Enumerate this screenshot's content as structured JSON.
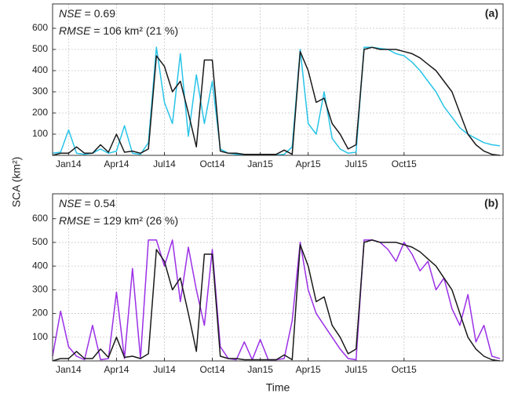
{
  "y_label": "SCA (km²)",
  "x_label": "Time",
  "chart_data": [
    {
      "type": "line",
      "panel_label": "(a)",
      "stats": [
        {
          "name": "NSE",
          "text": " = 0.69"
        },
        {
          "name": "RMSE",
          "text": " = 106 km² (21 %)"
        }
      ],
      "x": [
        -1,
        -0.5,
        0,
        0.5,
        1,
        1.5,
        2,
        2.5,
        3,
        3.5,
        4,
        4.5,
        5,
        5.5,
        6,
        6.5,
        7,
        7.5,
        8,
        8.5,
        9,
        9.5,
        10,
        10.5,
        11,
        11.5,
        12,
        12.5,
        13,
        13.5,
        14,
        14.5,
        15,
        15.5,
        16,
        16.5,
        17,
        17.5,
        18,
        18.5,
        19,
        19.5,
        20,
        20.5,
        21,
        21.5,
        22,
        22.5,
        23,
        23.5,
        24,
        24.5,
        25,
        25.5,
        26,
        26.5,
        27
      ],
      "series": [
        {
          "color": "#29c4e8",
          "values": [
            10,
            15,
            120,
            10,
            5,
            10,
            30,
            10,
            20,
            140,
            10,
            5,
            60,
            510,
            250,
            150,
            480,
            90,
            380,
            150,
            350,
            30,
            10,
            5,
            5,
            2,
            2,
            2,
            2,
            5,
            40,
            500,
            150,
            100,
            300,
            80,
            30,
            10,
            15,
            510,
            510,
            505,
            500,
            480,
            470,
            440,
            400,
            350,
            300,
            230,
            180,
            130,
            100,
            80,
            60,
            50,
            45
          ]
        },
        {
          "color": "#1a1a1a",
          "values": [
            0,
            10,
            10,
            40,
            10,
            10,
            50,
            15,
            100,
            15,
            20,
            10,
            30,
            470,
            420,
            300,
            350,
            200,
            40,
            450,
            450,
            20,
            10,
            10,
            5,
            5,
            5,
            5,
            5,
            25,
            5,
            490,
            400,
            250,
            270,
            150,
            100,
            30,
            50,
            500,
            510,
            500,
            500,
            500,
            490,
            480,
            460,
            430,
            400,
            350,
            300,
            200,
            100,
            50,
            20,
            5,
            0
          ]
        }
      ],
      "xlim": [
        -1,
        27.2
      ],
      "ylim": [
        0,
        715
      ],
      "xticks": [
        {
          "value": 0,
          "label": "Jan14"
        },
        {
          "value": 3,
          "label": "Apr14"
        },
        {
          "value": 6,
          "label": "Jul14"
        },
        {
          "value": 9,
          "label": "Oct14"
        },
        {
          "value": 12,
          "label": "Jan15"
        },
        {
          "value": 15,
          "label": "Apr15"
        },
        {
          "value": 18,
          "label": "Jul15"
        },
        {
          "value": 21,
          "label": "Oct15"
        }
      ],
      "yticks": [
        100,
        200,
        300,
        400,
        500,
        600
      ],
      "grid": true
    },
    {
      "type": "line",
      "panel_label": "(b)",
      "stats": [
        {
          "name": "NSE",
          "text": " = 0.54"
        },
        {
          "name": "RMSE",
          "text": " = 129 km² (26 %)"
        }
      ],
      "x": [
        -1,
        -0.5,
        0,
        0.5,
        1,
        1.5,
        2,
        2.5,
        3,
        3.5,
        4,
        4.5,
        5,
        5.5,
        6,
        6.5,
        7,
        7.5,
        8,
        8.5,
        9,
        9.5,
        10,
        10.5,
        11,
        11.5,
        12,
        12.5,
        13,
        13.5,
        14,
        14.5,
        15,
        15.5,
        16,
        16.5,
        17,
        17.5,
        18,
        18.5,
        19,
        19.5,
        20,
        20.5,
        21,
        21.5,
        22,
        22.5,
        23,
        23.5,
        24,
        24.5,
        25,
        25.5,
        26,
        26.5,
        27
      ],
      "series": [
        {
          "color": "#9b30e6",
          "values": [
            20,
            210,
            60,
            20,
            5,
            150,
            5,
            10,
            290,
            10,
            390,
            10,
            510,
            510,
            400,
            510,
            250,
            480,
            300,
            150,
            470,
            60,
            10,
            5,
            80,
            5,
            90,
            5,
            5,
            10,
            170,
            500,
            300,
            200,
            150,
            100,
            50,
            10,
            5,
            510,
            510,
            500,
            470,
            420,
            500,
            450,
            380,
            420,
            300,
            350,
            220,
            150,
            280,
            80,
            150,
            20,
            10
          ]
        },
        {
          "color": "#1a1a1a",
          "values": [
            0,
            10,
            10,
            40,
            10,
            10,
            50,
            15,
            100,
            15,
            20,
            10,
            30,
            470,
            420,
            300,
            350,
            200,
            40,
            450,
            450,
            20,
            10,
            10,
            5,
            5,
            5,
            5,
            5,
            25,
            5,
            490,
            400,
            250,
            270,
            150,
            100,
            30,
            50,
            500,
            510,
            500,
            500,
            500,
            490,
            480,
            460,
            430,
            400,
            350,
            300,
            200,
            100,
            50,
            20,
            5,
            0
          ]
        }
      ],
      "xlim": [
        -1,
        27.2
      ],
      "ylim": [
        0,
        705
      ],
      "xticks": [
        {
          "value": 0,
          "label": "Jan14"
        },
        {
          "value": 3,
          "label": "Apr14"
        },
        {
          "value": 6,
          "label": "Jul14"
        },
        {
          "value": 9,
          "label": "Oct14"
        },
        {
          "value": 12,
          "label": "Jan15"
        },
        {
          "value": 15,
          "label": "Apr15"
        },
        {
          "value": 18,
          "label": "Jul15"
        },
        {
          "value": 21,
          "label": "Oct15"
        }
      ],
      "yticks": [
        100,
        200,
        300,
        400,
        500,
        600
      ],
      "grid": true
    }
  ]
}
